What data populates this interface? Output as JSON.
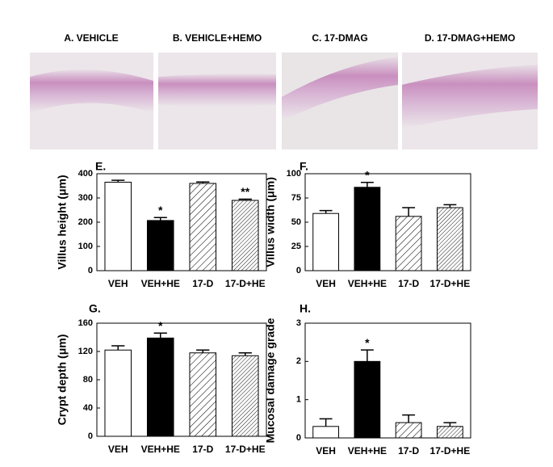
{
  "images": [
    "A. VEHICLE",
    "B. VEHICLE+HEMO",
    "C. 17-DMAG",
    "D. 17-DMAG+HEMO"
  ],
  "chart_data": [
    {
      "type": "bar",
      "panel": "E.",
      "ylabel": "Villus height (μm)",
      "categories": [
        "VEH",
        "VEH+HE",
        "17-D",
        "17-D+HE"
      ],
      "values": [
        365,
        207,
        360,
        290
      ],
      "errors": [
        8,
        12,
        6,
        5
      ],
      "significance": [
        null,
        "*",
        null,
        "**"
      ],
      "ylim": [
        0,
        400
      ],
      "yticks": [
        0,
        100,
        200,
        300,
        400
      ],
      "patterns": [
        "white",
        "black",
        "hatch-wide",
        "hatch-dense"
      ]
    },
    {
      "type": "bar",
      "panel": "F.",
      "ylabel": "Villus width (μm)",
      "categories": [
        "VEH",
        "VEH+HE",
        "17-D",
        "17-D+HE"
      ],
      "values": [
        59,
        86,
        56,
        65
      ],
      "errors": [
        3,
        5,
        9,
        3
      ],
      "significance": [
        null,
        "*",
        null,
        null
      ],
      "ylim": [
        0,
        100
      ],
      "yticks": [
        0,
        25,
        50,
        75,
        100
      ],
      "patterns": [
        "white",
        "black",
        "hatch-wide",
        "hatch-dense"
      ]
    },
    {
      "type": "bar",
      "panel": "G.",
      "ylabel": "Crypt depth (μm)",
      "categories": [
        "VEH",
        "VEH+HE",
        "17-D",
        "17-D+HE"
      ],
      "values": [
        122,
        139,
        118,
        114
      ],
      "errors": [
        6,
        7,
        4,
        4
      ],
      "significance": [
        null,
        "*",
        null,
        null
      ],
      "ylim": [
        0,
        160
      ],
      "yticks": [
        0,
        40,
        80,
        120,
        160
      ],
      "patterns": [
        "white",
        "black",
        "hatch-wide",
        "hatch-dense"
      ]
    },
    {
      "type": "bar",
      "panel": "H.",
      "ylabel": "Mucosal damage grade",
      "categories": [
        "VEH",
        "VEH+HE",
        "17-D",
        "17-D+HE"
      ],
      "values": [
        0.3,
        2.0,
        0.4,
        0.3
      ],
      "errors": [
        0.2,
        0.3,
        0.2,
        0.1
      ],
      "significance": [
        null,
        "*",
        null,
        null
      ],
      "ylim": [
        0,
        3
      ],
      "yticks": [
        0,
        1,
        2,
        3
      ],
      "patterns": [
        "white",
        "black",
        "hatch-wide",
        "hatch-dense"
      ]
    }
  ]
}
